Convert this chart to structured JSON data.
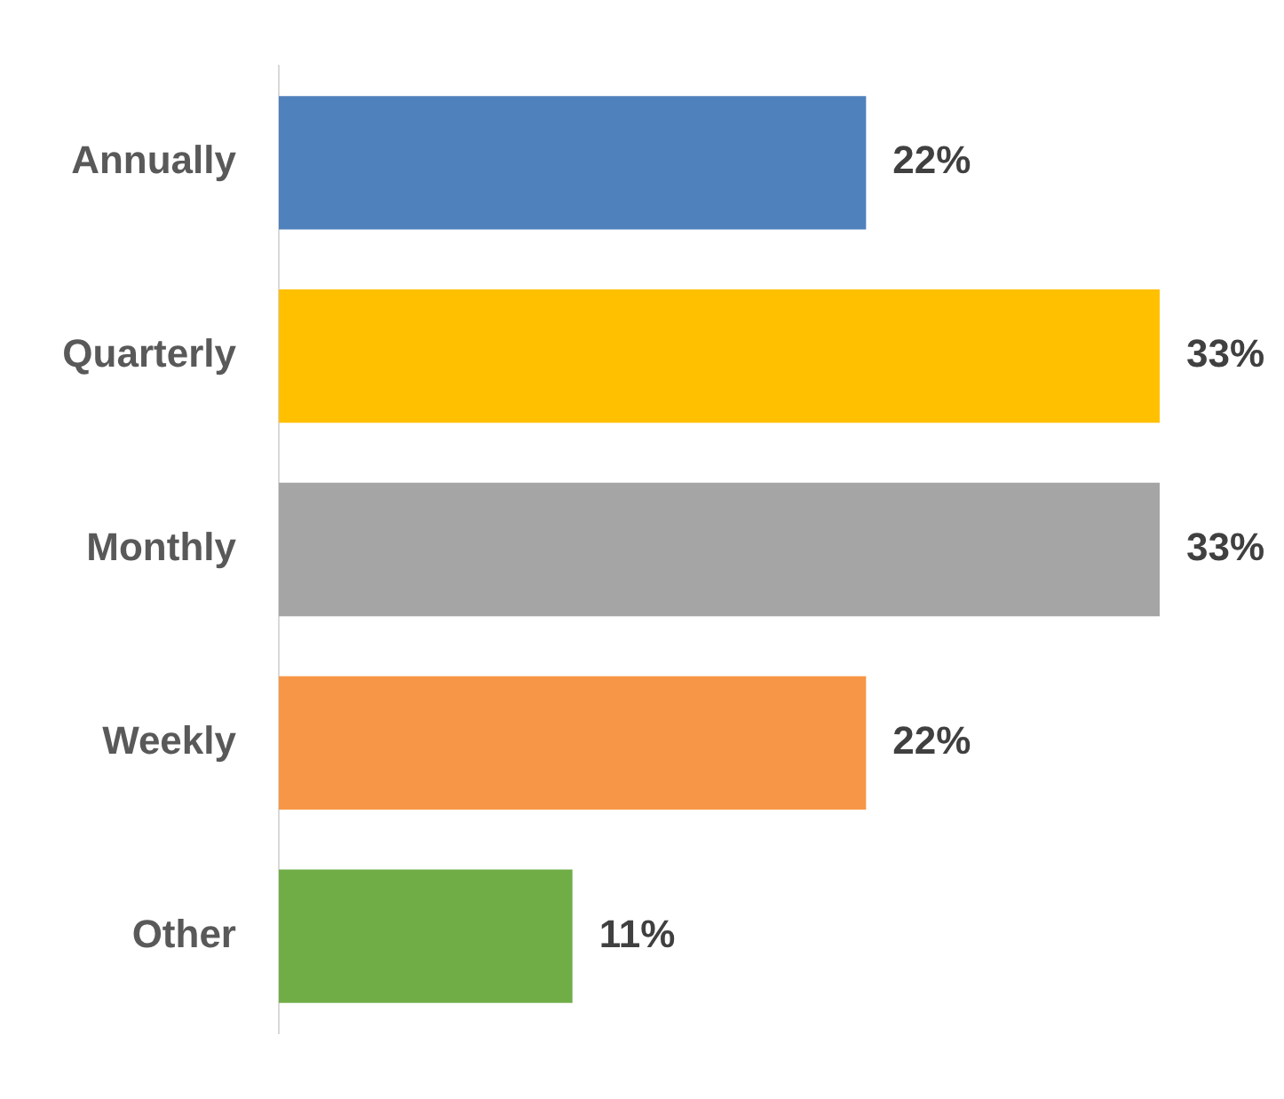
{
  "chart_data": {
    "type": "bar",
    "orientation": "horizontal",
    "categories": [
      "Annually",
      "Quarterly",
      "Monthly",
      "Weekly",
      "Other"
    ],
    "values": [
      22,
      33,
      33,
      22,
      11
    ],
    "colors": [
      "#4f81bd",
      "#ffc000",
      "#a5a5a5",
      "#f79646",
      "#70ad47"
    ],
    "value_labels": [
      "22%",
      "33%",
      "33%",
      "22%",
      "11%"
    ],
    "legend": false
  }
}
